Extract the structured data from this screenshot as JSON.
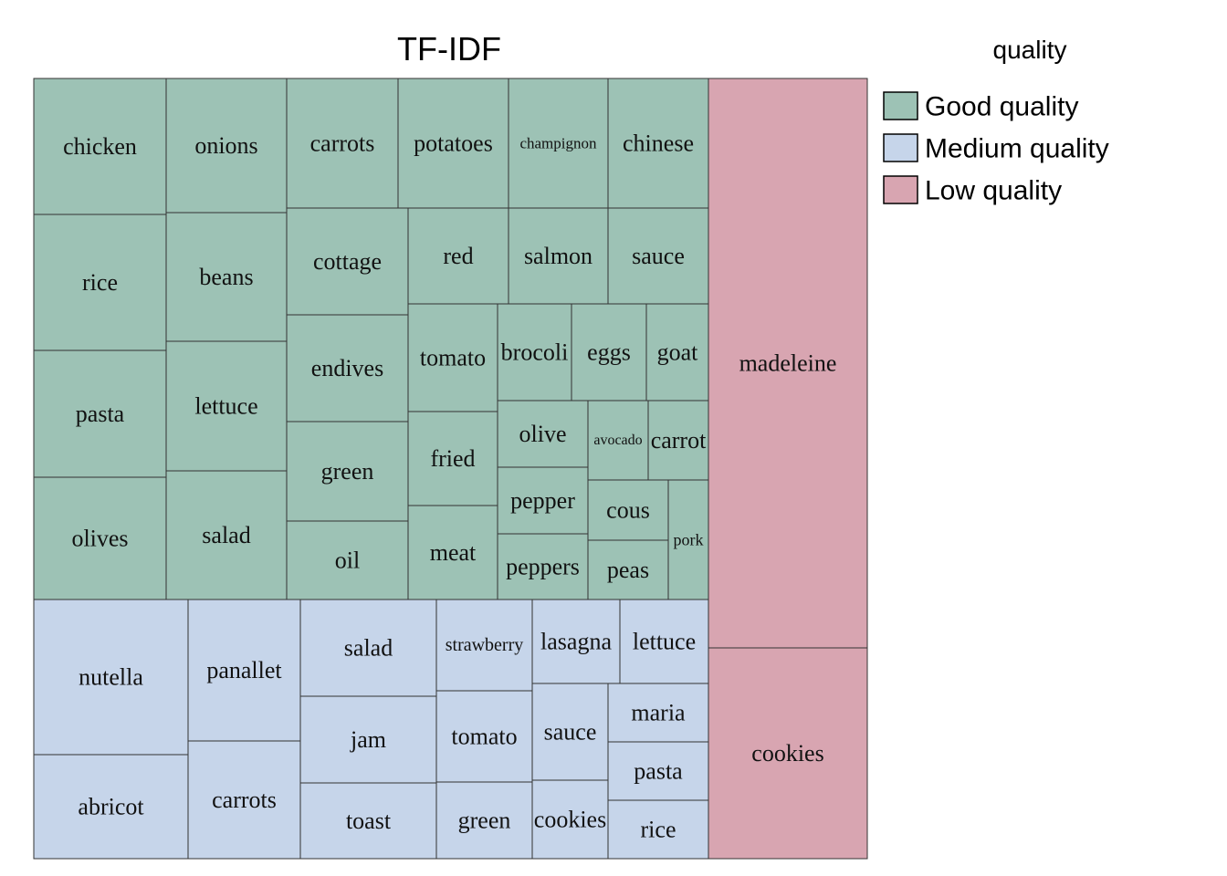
{
  "chart_data": {
    "type": "treemap",
    "title": "TF-IDF",
    "legend": {
      "title": "quality",
      "placement": "right",
      "entries": [
        {
          "name": "Good quality",
          "color": "#9dc2b5"
        },
        {
          "name": "Medium quality",
          "color": "#c6d5ea"
        },
        {
          "name": "Low quality",
          "color": "#d8a5b1"
        }
      ]
    },
    "groups": [
      {
        "name": "Good quality",
        "color": "#9dc2b5",
        "terms": [
          "chicken",
          "rice",
          "pasta",
          "olives",
          "onions",
          "beans",
          "lettuce",
          "salad",
          "carrots",
          "potatoes",
          "champignon",
          "chinese",
          "cottage",
          "red",
          "salmon",
          "sauce",
          "endives",
          "tomato",
          "brocoli",
          "eggs",
          "goat",
          "green",
          "fried",
          "olive",
          "avocado",
          "carrot",
          "oil",
          "meat",
          "pepper",
          "cous",
          "pork",
          "peppers",
          "peas"
        ]
      },
      {
        "name": "Medium quality",
        "color": "#c6d5ea",
        "terms": [
          "nutella",
          "abricot",
          "panallet",
          "carrots",
          "salad",
          "jam",
          "toast",
          "strawberry",
          "tomato",
          "green",
          "lasagna",
          "lettuce",
          "sauce",
          "cookies",
          "maria",
          "pasta",
          "rice"
        ]
      },
      {
        "name": "Low quality",
        "color": "#d8a5b1",
        "terms": [
          "madeleine",
          "cookies"
        ]
      }
    ]
  }
}
